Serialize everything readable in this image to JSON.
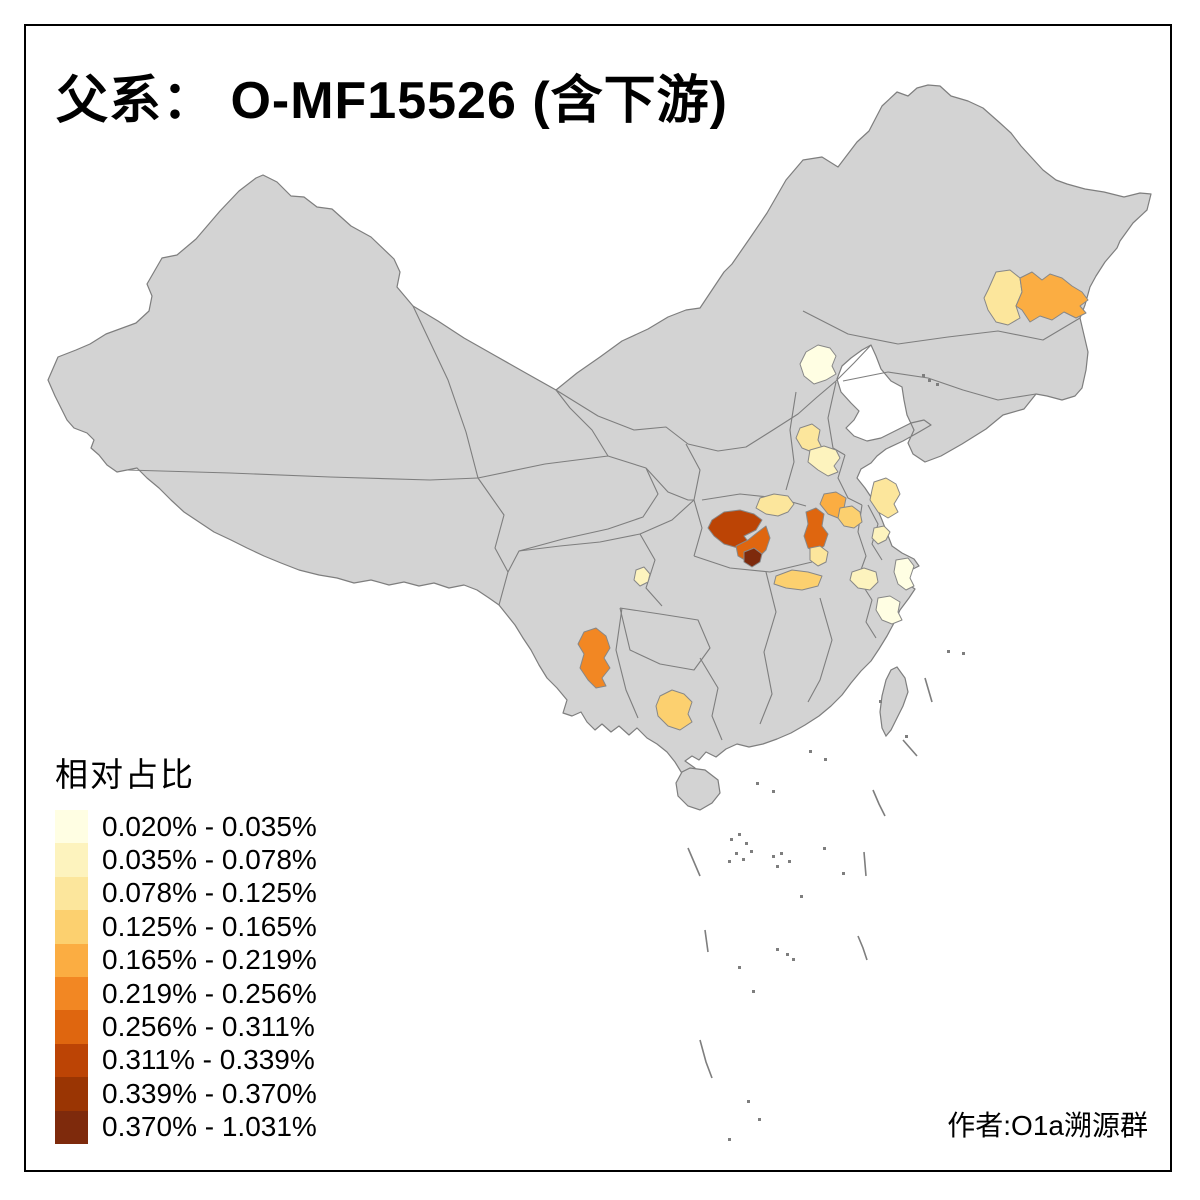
{
  "title": "父系： O-MF15526 (含下游)",
  "attribution": "作者:O1a溯源群",
  "legend": {
    "title": "相对占比",
    "classes": [
      {
        "label": "0.020% - 0.035%",
        "color": "#FFFEE3"
      },
      {
        "label": "0.035% - 0.078%",
        "color": "#FDF3BE"
      },
      {
        "label": "0.078% - 0.125%",
        "color": "#FCE69C"
      },
      {
        "label": "0.125% - 0.165%",
        "color": "#FCD06F"
      },
      {
        "label": "0.165% - 0.219%",
        "color": "#FBAD42"
      },
      {
        "label": "0.219% - 0.256%",
        "color": "#F28723"
      },
      {
        "label": "0.256% - 0.311%",
        "color": "#DF660F"
      },
      {
        "label": "0.311% - 0.339%",
        "color": "#BC4405"
      },
      {
        "label": "0.339% - 0.370%",
        "color": "#9A3503"
      },
      {
        "label": "0.370% - 1.031%",
        "color": "#7E2A0C"
      }
    ]
  },
  "map": {
    "land_color": "#D3D3D3",
    "border_color": "#7E7E7E",
    "region_stroke_color": "#878787",
    "regions": [
      {
        "id": "heilongjiang-west-prefecture",
        "class_index": 2
      },
      {
        "id": "heilongjiang-east-prefecture",
        "class_index": 4
      },
      {
        "id": "beijing",
        "class_index": 0
      },
      {
        "id": "hebei-south-prefecture",
        "class_index": 2
      },
      {
        "id": "shandong-west-prefecture",
        "class_index": 1
      },
      {
        "id": "jiangsu-north-prefecture",
        "class_index": 2
      },
      {
        "id": "shandong-southwest-prefecture",
        "class_index": 4
      },
      {
        "id": "jiangsu-northwest-prefecture",
        "class_index": 3
      },
      {
        "id": "jiangsu-central-prefecture",
        "class_index": 1
      },
      {
        "id": "henan-southeast-prefecture",
        "class_index": 2
      },
      {
        "id": "hubei-northwest-prefecture",
        "class_index": 7
      },
      {
        "id": "hubei-central-prefecture",
        "class_index": 6
      },
      {
        "id": "hubei-central-south-prefecture",
        "class_index": 9
      },
      {
        "id": "anhui-central-prefecture",
        "class_index": 6
      },
      {
        "id": "anhui-southeast-prefecture",
        "class_index": 2
      },
      {
        "id": "hubei-southeast-prefecture",
        "class_index": 3
      },
      {
        "id": "jiangxi-north-prefecture",
        "class_index": 1
      },
      {
        "id": "zhejiang-north-prefecture",
        "class_index": 0
      },
      {
        "id": "zhejiang-central-prefecture",
        "class_index": 0
      },
      {
        "id": "chongqing-prefecture",
        "class_index": 1
      },
      {
        "id": "yunnan-central-prefecture",
        "class_index": 5
      },
      {
        "id": "guangxi-central-prefecture",
        "class_index": 3
      }
    ]
  },
  "chart_data": {
    "type": "choropleth",
    "title": "父系： O-MF15526 (含下游)",
    "legend_title": "相对占比",
    "class_ranges": [
      "0.020% - 0.035%",
      "0.035% - 0.078%",
      "0.078% - 0.125%",
      "0.125% - 0.165%",
      "0.165% - 0.219%",
      "0.219% - 0.256%",
      "0.256% - 0.311%",
      "0.311% - 0.339%",
      "0.339% - 0.370%",
      "0.370% - 1.031%"
    ],
    "region_values": [
      {
        "area": "heilongjiang-west-prefecture",
        "range": "0.078% - 0.125%"
      },
      {
        "area": "heilongjiang-east-prefecture",
        "range": "0.165% - 0.219%"
      },
      {
        "area": "beijing",
        "range": "0.020% - 0.035%"
      },
      {
        "area": "hebei-south-prefecture",
        "range": "0.078% - 0.125%"
      },
      {
        "area": "shandong-west-prefecture",
        "range": "0.035% - 0.078%"
      },
      {
        "area": "jiangsu-north-prefecture",
        "range": "0.078% - 0.125%"
      },
      {
        "area": "shandong-southwest-prefecture",
        "range": "0.165% - 0.219%"
      },
      {
        "area": "jiangsu-northwest-prefecture",
        "range": "0.125% - 0.165%"
      },
      {
        "area": "jiangsu-central-prefecture",
        "range": "0.035% - 0.078%"
      },
      {
        "area": "henan-southeast-prefecture",
        "range": "0.078% - 0.125%"
      },
      {
        "area": "hubei-northwest-prefecture",
        "range": "0.311% - 0.339%"
      },
      {
        "area": "hubei-central-prefecture",
        "range": "0.256% - 0.311%"
      },
      {
        "area": "hubei-central-south-prefecture",
        "range": "0.370% - 1.031%"
      },
      {
        "area": "anhui-central-prefecture",
        "range": "0.256% - 0.311%"
      },
      {
        "area": "anhui-southeast-prefecture",
        "range": "0.078% - 0.125%"
      },
      {
        "area": "hubei-southeast-prefecture",
        "range": "0.125% - 0.165%"
      },
      {
        "area": "jiangxi-north-prefecture",
        "range": "0.035% - 0.078%"
      },
      {
        "area": "zhejiang-north-prefecture",
        "range": "0.020% - 0.035%"
      },
      {
        "area": "zhejiang-central-prefecture",
        "range": "0.020% - 0.035%"
      },
      {
        "area": "chongqing-prefecture",
        "range": "0.035% - 0.078%"
      },
      {
        "area": "yunnan-central-prefecture",
        "range": "0.219% - 0.256%"
      },
      {
        "area": "guangxi-central-prefecture",
        "range": "0.125% - 0.165%"
      }
    ]
  }
}
